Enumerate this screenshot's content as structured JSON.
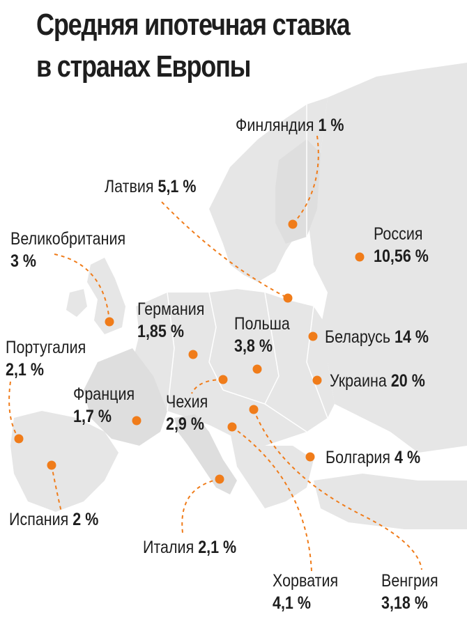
{
  "title": {
    "line1": "Средняя ипотечная ставка",
    "line2": "в странах Европы"
  },
  "colors": {
    "land": "#e6e6e6",
    "land_alt": "#dedede",
    "border": "#ffffff",
    "marker": "#f07c1a",
    "leader": "#f07c1a",
    "text": "#1e1e1e"
  },
  "countries": [
    {
      "name": "Финляндия",
      "rate": "1 %"
    },
    {
      "name": "Латвия",
      "rate": "5,1 %"
    },
    {
      "name": "Россия",
      "rate": "10,56 %"
    },
    {
      "name": "Великобритания",
      "rate": "3 %"
    },
    {
      "name": "Германия",
      "rate": "1,85 %"
    },
    {
      "name": "Польша",
      "rate": "3,8 %"
    },
    {
      "name": "Беларусь",
      "rate": "14 %"
    },
    {
      "name": "Португалия",
      "rate": "2,1 %"
    },
    {
      "name": "Украина",
      "rate": "20 %"
    },
    {
      "name": "Франция",
      "rate": "1,7 %"
    },
    {
      "name": "Чехия",
      "rate": "2,9 %"
    },
    {
      "name": "Болгария",
      "rate": "4 %"
    },
    {
      "name": "Испания",
      "rate": "2 %"
    },
    {
      "name": "Италия",
      "rate": "2,1 %"
    },
    {
      "name": "Хорватия",
      "rate": "4,1 %"
    },
    {
      "name": "Венгрия",
      "rate": "3,18 %"
    }
  ]
}
